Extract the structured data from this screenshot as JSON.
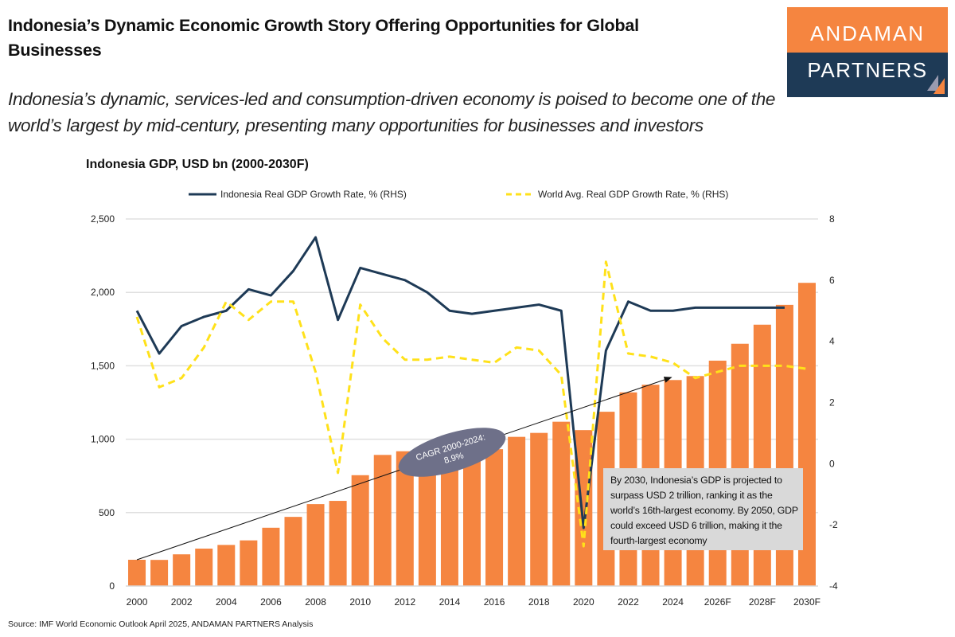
{
  "header": {
    "title": "Indonesia’s Dynamic Economic Growth Story Offering Opportunities for Global Businesses",
    "subtitle": "Indonesia’s dynamic, services-led and consumption-driven economy is poised to become one of the world’s largest by mid-century, presenting many opportunities for businesses and investors"
  },
  "logo": {
    "line1": "ANDAMAN",
    "line2": "PARTNERS",
    "colors": {
      "top": "#f58540",
      "bottom": "#1e3a56"
    }
  },
  "source": "Source: IMF World Economic Outlook April 2025, ANDAMAN PARTNERS Analysis",
  "chart_data": {
    "type": "bar",
    "title": "Indonesia GDP, USD bn (2000-2030F)",
    "categories": [
      "2000",
      "2001",
      "2002",
      "2003",
      "2004",
      "2005",
      "2006",
      "2007",
      "2008",
      "2009",
      "2010",
      "2011",
      "2012",
      "2013",
      "2014",
      "2015",
      "2016",
      "2017",
      "2018",
      "2019",
      "2020",
      "2021",
      "2022",
      "2023",
      "2024",
      "2025",
      "2026F",
      "2027",
      "2028F",
      "2029",
      "2030F"
    ],
    "x_tick_labels": [
      "2000",
      "2002",
      "2004",
      "2006",
      "2008",
      "2010",
      "2012",
      "2014",
      "2016",
      "2018",
      "2020",
      "2022",
      "2024",
      "2026F",
      "2028F",
      "2030F"
    ],
    "bars": {
      "values": [
        179,
        178,
        216,
        255,
        280,
        311,
        397,
        471,
        558,
        580,
        755,
        893,
        918,
        913,
        891,
        861,
        932,
        1016,
        1043,
        1119,
        1062,
        1187,
        1319,
        1371,
        1403,
        1430,
        1535,
        1650,
        1780,
        1915,
        2065
      ],
      "color": "#f58540"
    },
    "y_left": {
      "range": [
        0,
        2500
      ],
      "ticks": [
        "0",
        "500",
        "1,000",
        "1,500",
        "2,000",
        "2,500"
      ],
      "values": [
        0,
        500,
        1000,
        1500,
        2000,
        2500
      ]
    },
    "y_right": {
      "range": [
        -4,
        8
      ],
      "ticks": [
        "-4",
        "-2",
        "0",
        "2",
        "4",
        "6",
        "8"
      ],
      "values": [
        -4,
        -2,
        0,
        2,
        4,
        6,
        8
      ]
    },
    "series": [
      {
        "name": "Indonesia Real GDP Growth Rate, % (RHS)",
        "axis": "right",
        "style": "solid",
        "color": "#1e3a56",
        "values": [
          5.0,
          3.6,
          4.5,
          4.8,
          5.0,
          5.7,
          5.5,
          6.3,
          7.4,
          4.7,
          6.4,
          6.2,
          6.0,
          5.6,
          5.0,
          4.9,
          5.0,
          5.1,
          5.2,
          5.0,
          -2.1,
          3.7,
          5.3,
          5.0,
          5.0,
          5.1,
          5.1,
          5.1,
          5.1,
          5.1,
          null
        ]
      },
      {
        "name": "World Avg. Real GDP Growth Rate, % (RHS)",
        "axis": "right",
        "style": "dashed",
        "color": "#ffe11a",
        "values": [
          4.8,
          2.5,
          2.8,
          3.8,
          5.3,
          4.7,
          5.3,
          5.3,
          3.0,
          -0.3,
          5.2,
          4.1,
          3.4,
          3.4,
          3.5,
          3.4,
          3.3,
          3.8,
          3.7,
          2.9,
          -2.7,
          6.6,
          3.6,
          3.5,
          3.3,
          2.8,
          3.0,
          3.2,
          3.2,
          3.2,
          3.1
        ]
      }
    ],
    "legend_position": "top",
    "grid": true,
    "annotations": {
      "cagr": {
        "line1": "CAGR 2000-2024:",
        "line2": "8.9%",
        "from": "2000",
        "to": "2024"
      },
      "note": "By 2030, Indonesia’s GDP is projected to surpass USD 2 trillion, ranking it as the world’s 16th-largest economy. By 2050, GDP could exceed USD 6 trillion, making it the fourth-largest economy"
    }
  }
}
